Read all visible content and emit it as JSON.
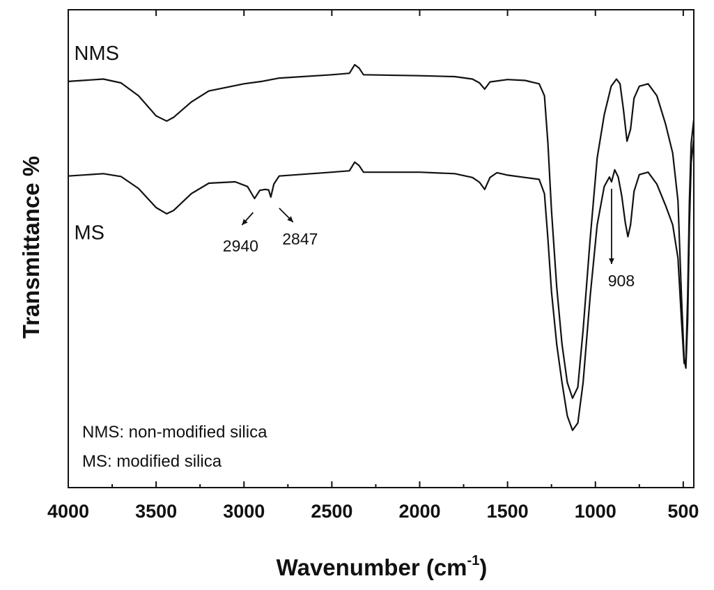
{
  "chart_data": {
    "type": "line",
    "xlabel": "Wavenumber (cm",
    "xlabel_sup": "-1",
    "xlabel_close": ")",
    "ylabel": "Transmittance %",
    "x_reversed": true,
    "xlim": [
      4000,
      440
    ],
    "ylim": [
      0,
      100
    ],
    "y_tick_labels": false,
    "x_ticks": [
      4000,
      3500,
      3000,
      2500,
      2000,
      1500,
      1000,
      500
    ],
    "x_tick_labels": [
      "4000",
      "3500",
      "3000",
      "2500",
      "2000",
      "1500",
      "1000",
      "500"
    ],
    "grid": false,
    "series": [
      {
        "name": "NMS",
        "points": [
          [
            4000,
            85.0
          ],
          [
            3800,
            85.5
          ],
          [
            3700,
            84.7
          ],
          [
            3600,
            82.0
          ],
          [
            3500,
            77.8
          ],
          [
            3440,
            76.7
          ],
          [
            3400,
            77.5
          ],
          [
            3300,
            80.7
          ],
          [
            3200,
            83.0
          ],
          [
            3000,
            84.5
          ],
          [
            2900,
            85.0
          ],
          [
            2800,
            85.7
          ],
          [
            2500,
            86.4
          ],
          [
            2400,
            86.7
          ],
          [
            2370,
            88.5
          ],
          [
            2345,
            87.8
          ],
          [
            2320,
            86.4
          ],
          [
            2000,
            86.2
          ],
          [
            1800,
            86.0
          ],
          [
            1700,
            85.5
          ],
          [
            1660,
            84.7
          ],
          [
            1630,
            83.4
          ],
          [
            1600,
            84.9
          ],
          [
            1500,
            85.4
          ],
          [
            1400,
            85.2
          ],
          [
            1320,
            84.5
          ],
          [
            1290,
            82.0
          ],
          [
            1270,
            72.0
          ],
          [
            1250,
            58.0
          ],
          [
            1220,
            42.0
          ],
          [
            1190,
            30.0
          ],
          [
            1160,
            22.0
          ],
          [
            1130,
            18.7
          ],
          [
            1100,
            21.0
          ],
          [
            1070,
            33.0
          ],
          [
            1030,
            52.0
          ],
          [
            990,
            69.0
          ],
          [
            950,
            78.0
          ],
          [
            910,
            84.0
          ],
          [
            880,
            85.5
          ],
          [
            860,
            84.5
          ],
          [
            840,
            79.0
          ],
          [
            820,
            72.5
          ],
          [
            800,
            75.0
          ],
          [
            780,
            81.5
          ],
          [
            750,
            84.0
          ],
          [
            700,
            84.5
          ],
          [
            650,
            82.0
          ],
          [
            600,
            76.0
          ],
          [
            560,
            70.0
          ],
          [
            530,
            60.0
          ],
          [
            510,
            40.0
          ],
          [
            495,
            27.0
          ],
          [
            485,
            25.0
          ],
          [
            475,
            35.0
          ],
          [
            465,
            55.0
          ],
          [
            455,
            68.0
          ],
          [
            440,
            73.0
          ]
        ]
      },
      {
        "name": "MS",
        "points": [
          [
            4000,
            65.2
          ],
          [
            3800,
            65.7
          ],
          [
            3700,
            65.1
          ],
          [
            3600,
            62.6
          ],
          [
            3500,
            58.6
          ],
          [
            3440,
            57.3
          ],
          [
            3400,
            58.0
          ],
          [
            3300,
            61.5
          ],
          [
            3200,
            63.7
          ],
          [
            3050,
            64.0
          ],
          [
            2980,
            63.0
          ],
          [
            2940,
            60.5
          ],
          [
            2910,
            62.2
          ],
          [
            2880,
            62.4
          ],
          [
            2860,
            62.3
          ],
          [
            2847,
            60.8
          ],
          [
            2830,
            63.5
          ],
          [
            2800,
            65.2
          ],
          [
            2500,
            66.0
          ],
          [
            2400,
            66.3
          ],
          [
            2370,
            68.1
          ],
          [
            2345,
            67.4
          ],
          [
            2320,
            66.0
          ],
          [
            2000,
            66.0
          ],
          [
            1800,
            65.7
          ],
          [
            1700,
            64.9
          ],
          [
            1660,
            63.9
          ],
          [
            1630,
            62.4
          ],
          [
            1600,
            64.9
          ],
          [
            1560,
            65.9
          ],
          [
            1500,
            65.4
          ],
          [
            1400,
            64.9
          ],
          [
            1320,
            64.5
          ],
          [
            1290,
            61.5
          ],
          [
            1270,
            52.0
          ],
          [
            1250,
            41.0
          ],
          [
            1220,
            30.0
          ],
          [
            1190,
            22.0
          ],
          [
            1160,
            15.0
          ],
          [
            1130,
            12.0
          ],
          [
            1100,
            13.5
          ],
          [
            1070,
            22.0
          ],
          [
            1030,
            40.0
          ],
          [
            990,
            55.0
          ],
          [
            950,
            63.0
          ],
          [
            920,
            65.0
          ],
          [
            908,
            64.0
          ],
          [
            890,
            66.5
          ],
          [
            870,
            65.0
          ],
          [
            850,
            61.0
          ],
          [
            830,
            55.5
          ],
          [
            815,
            52.5
          ],
          [
            800,
            55.0
          ],
          [
            780,
            62.0
          ],
          [
            750,
            65.5
          ],
          [
            700,
            66.0
          ],
          [
            650,
            63.5
          ],
          [
            600,
            59.0
          ],
          [
            560,
            55.0
          ],
          [
            530,
            48.0
          ],
          [
            510,
            35.0
          ],
          [
            495,
            26.0
          ],
          [
            485,
            26.5
          ],
          [
            475,
            40.0
          ],
          [
            465,
            60.0
          ],
          [
            455,
            72.0
          ],
          [
            440,
            77.0
          ]
        ]
      }
    ],
    "series_labels": [
      {
        "text": "NMS",
        "anchor_x": 3990,
        "anchor_y": 89.5
      },
      {
        "text": "MS",
        "anchor_x": 3990,
        "anchor_y": 52.0
      }
    ],
    "annotations": [
      {
        "label": "2940",
        "x": 2940,
        "y": 60.5,
        "direction": "down-left"
      },
      {
        "label": "2847",
        "x": 2847,
        "y": 60.8,
        "direction": "down-right"
      },
      {
        "label": "908",
        "x": 908,
        "y": 64.0,
        "direction": "down"
      }
    ],
    "legend_notes": [
      "NMS: non-modified silica",
      "MS: modified silica"
    ]
  }
}
